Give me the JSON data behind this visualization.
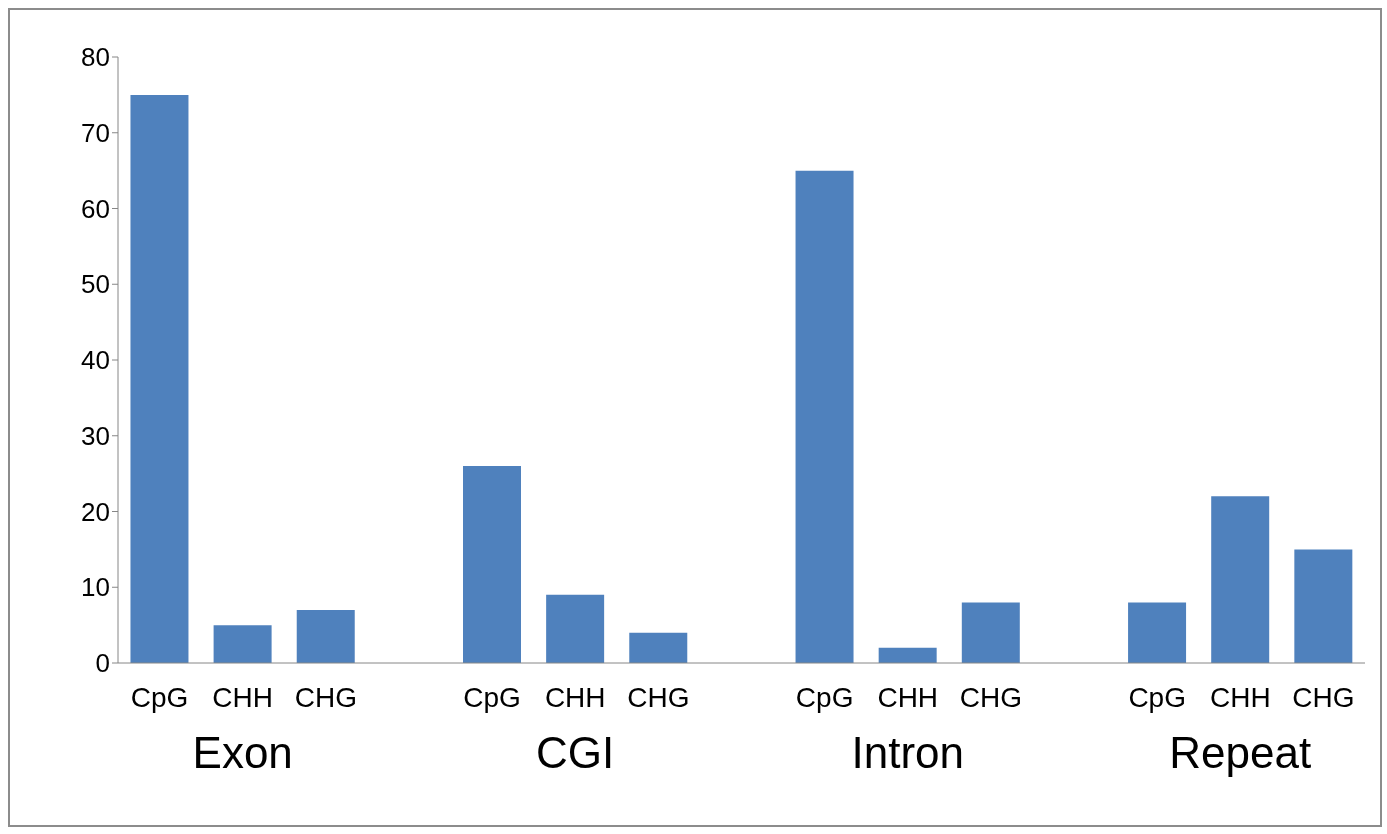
{
  "chart_data": {
    "type": "bar",
    "categories": [
      "CpG",
      "CHH",
      "CHG",
      null,
      "CpG",
      "CHH",
      "CHG",
      null,
      "CpG",
      "CHH",
      "CHG",
      null,
      "CpG",
      "CHH",
      "CHG"
    ],
    "values": [
      75,
      5,
      7,
      null,
      26,
      9,
      4,
      null,
      65,
      2,
      8,
      null,
      8,
      22,
      15
    ],
    "color": "#4f81bd",
    "ylim": [
      0,
      80
    ],
    "yticks": [
      0,
      10,
      20,
      30,
      40,
      50,
      60,
      70,
      80
    ],
    "annotations": [
      "Exon",
      "CGI",
      "Intron",
      "Repeat"
    ],
    "grid": false,
    "legend": false
  }
}
